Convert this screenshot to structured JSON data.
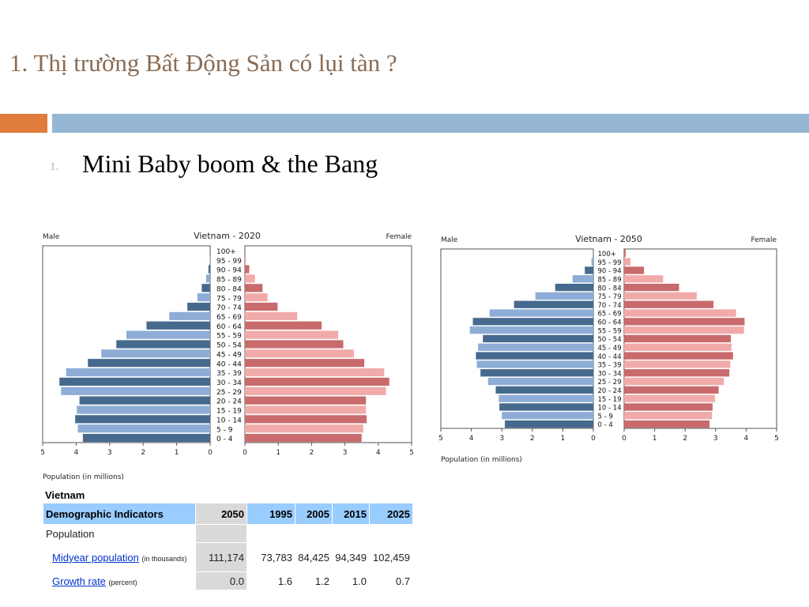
{
  "slide": {
    "title": "1. Thị trường Bất Động Sản có lụi tàn ?",
    "bullet_number": "1.",
    "bullet_text": "Mini Baby boom & the Bang"
  },
  "colors": {
    "accent_orange": "#e07c3c",
    "accent_blue": "#94b6d2",
    "male_dark": "#466a8e",
    "male_light": "#8eadd6",
    "female_dark": "#c96a6c",
    "female_light": "#f1aaaa"
  },
  "chart_data": [
    {
      "type": "bar",
      "title": "Vietnam - 2020",
      "left_label": "Male",
      "right_label": "Female",
      "xlabel": "Population (in millions)",
      "xlim": [
        0,
        5
      ],
      "xticks": [
        "5",
        "4",
        "3",
        "2",
        "1",
        "0",
        "0",
        "1",
        "2",
        "3",
        "4",
        "5"
      ],
      "categories": [
        "100+",
        "95 - 99",
        "90 - 94",
        "85 - 89",
        "80 - 84",
        "75 - 79",
        "70 - 74",
        "65 - 69",
        "60 - 64",
        "55 - 59",
        "50 - 54",
        "45 - 49",
        "40 - 44",
        "35 - 39",
        "30 - 34",
        "25 - 29",
        "20 - 24",
        "15 - 19",
        "10 - 14",
        "5 - 9",
        "0 - 4"
      ],
      "series": [
        {
          "name": "Male",
          "values": [
            0,
            0.01,
            0.05,
            0.12,
            0.25,
            0.38,
            0.68,
            1.22,
            1.9,
            2.5,
            2.8,
            3.25,
            3.65,
            4.3,
            4.5,
            4.45,
            3.9,
            3.98,
            4.03,
            3.95,
            3.8
          ]
        },
        {
          "name": "Female",
          "values": [
            0,
            0.03,
            0.13,
            0.3,
            0.53,
            0.68,
            0.98,
            1.57,
            2.3,
            2.8,
            2.95,
            3.27,
            3.58,
            4.18,
            4.33,
            4.23,
            3.63,
            3.63,
            3.65,
            3.55,
            3.5
          ]
        }
      ]
    },
    {
      "type": "bar",
      "title": "Vietnam - 2050",
      "left_label": "Male",
      "right_label": "Female",
      "xlabel": "Population (in millions)",
      "xlim": [
        0,
        5
      ],
      "xticks": [
        "5",
        "4",
        "3",
        "2",
        "1",
        "0",
        "0",
        "1",
        "2",
        "3",
        "4",
        "5"
      ],
      "categories": [
        "100+",
        "95 - 99",
        "90 - 94",
        "85 - 89",
        "80 - 84",
        "75 - 79",
        "70 - 74",
        "65 - 69",
        "60 - 64",
        "55 - 59",
        "50 - 54",
        "45 - 49",
        "40 - 44",
        "35 - 39",
        "30 - 34",
        "25 - 29",
        "20 - 24",
        "15 - 19",
        "10 - 14",
        "5 - 9",
        "0 - 4"
      ],
      "series": [
        {
          "name": "Male",
          "values": [
            0.01,
            0.06,
            0.28,
            0.68,
            1.25,
            1.9,
            2.6,
            3.4,
            3.95,
            4.05,
            3.62,
            3.78,
            3.85,
            3.82,
            3.7,
            3.45,
            3.2,
            3.1,
            3.08,
            3.0,
            2.9
          ]
        },
        {
          "name": "Female",
          "values": [
            0.05,
            0.21,
            0.65,
            1.28,
            1.8,
            2.38,
            2.93,
            3.67,
            3.95,
            3.93,
            3.5,
            3.52,
            3.57,
            3.48,
            3.45,
            3.27,
            3.1,
            2.98,
            2.9,
            2.88,
            2.8
          ]
        }
      ]
    },
    {
      "type": "table",
      "title": "Vietnam",
      "header_label": "Demographic Indicators",
      "columns": [
        "2050",
        "1995",
        "2005",
        "2015",
        "2025"
      ],
      "section": "Population",
      "rows": [
        {
          "label": "Midyear population",
          "note": "(in thousands)",
          "values": [
            "111,174",
            "73,783",
            "84,425",
            "94,349",
            "102,459"
          ]
        },
        {
          "label": "Growth rate",
          "note": "(percent)",
          "values": [
            "0.0",
            "1.6",
            "1.2",
            "1.0",
            "0.7"
          ]
        }
      ]
    }
  ]
}
